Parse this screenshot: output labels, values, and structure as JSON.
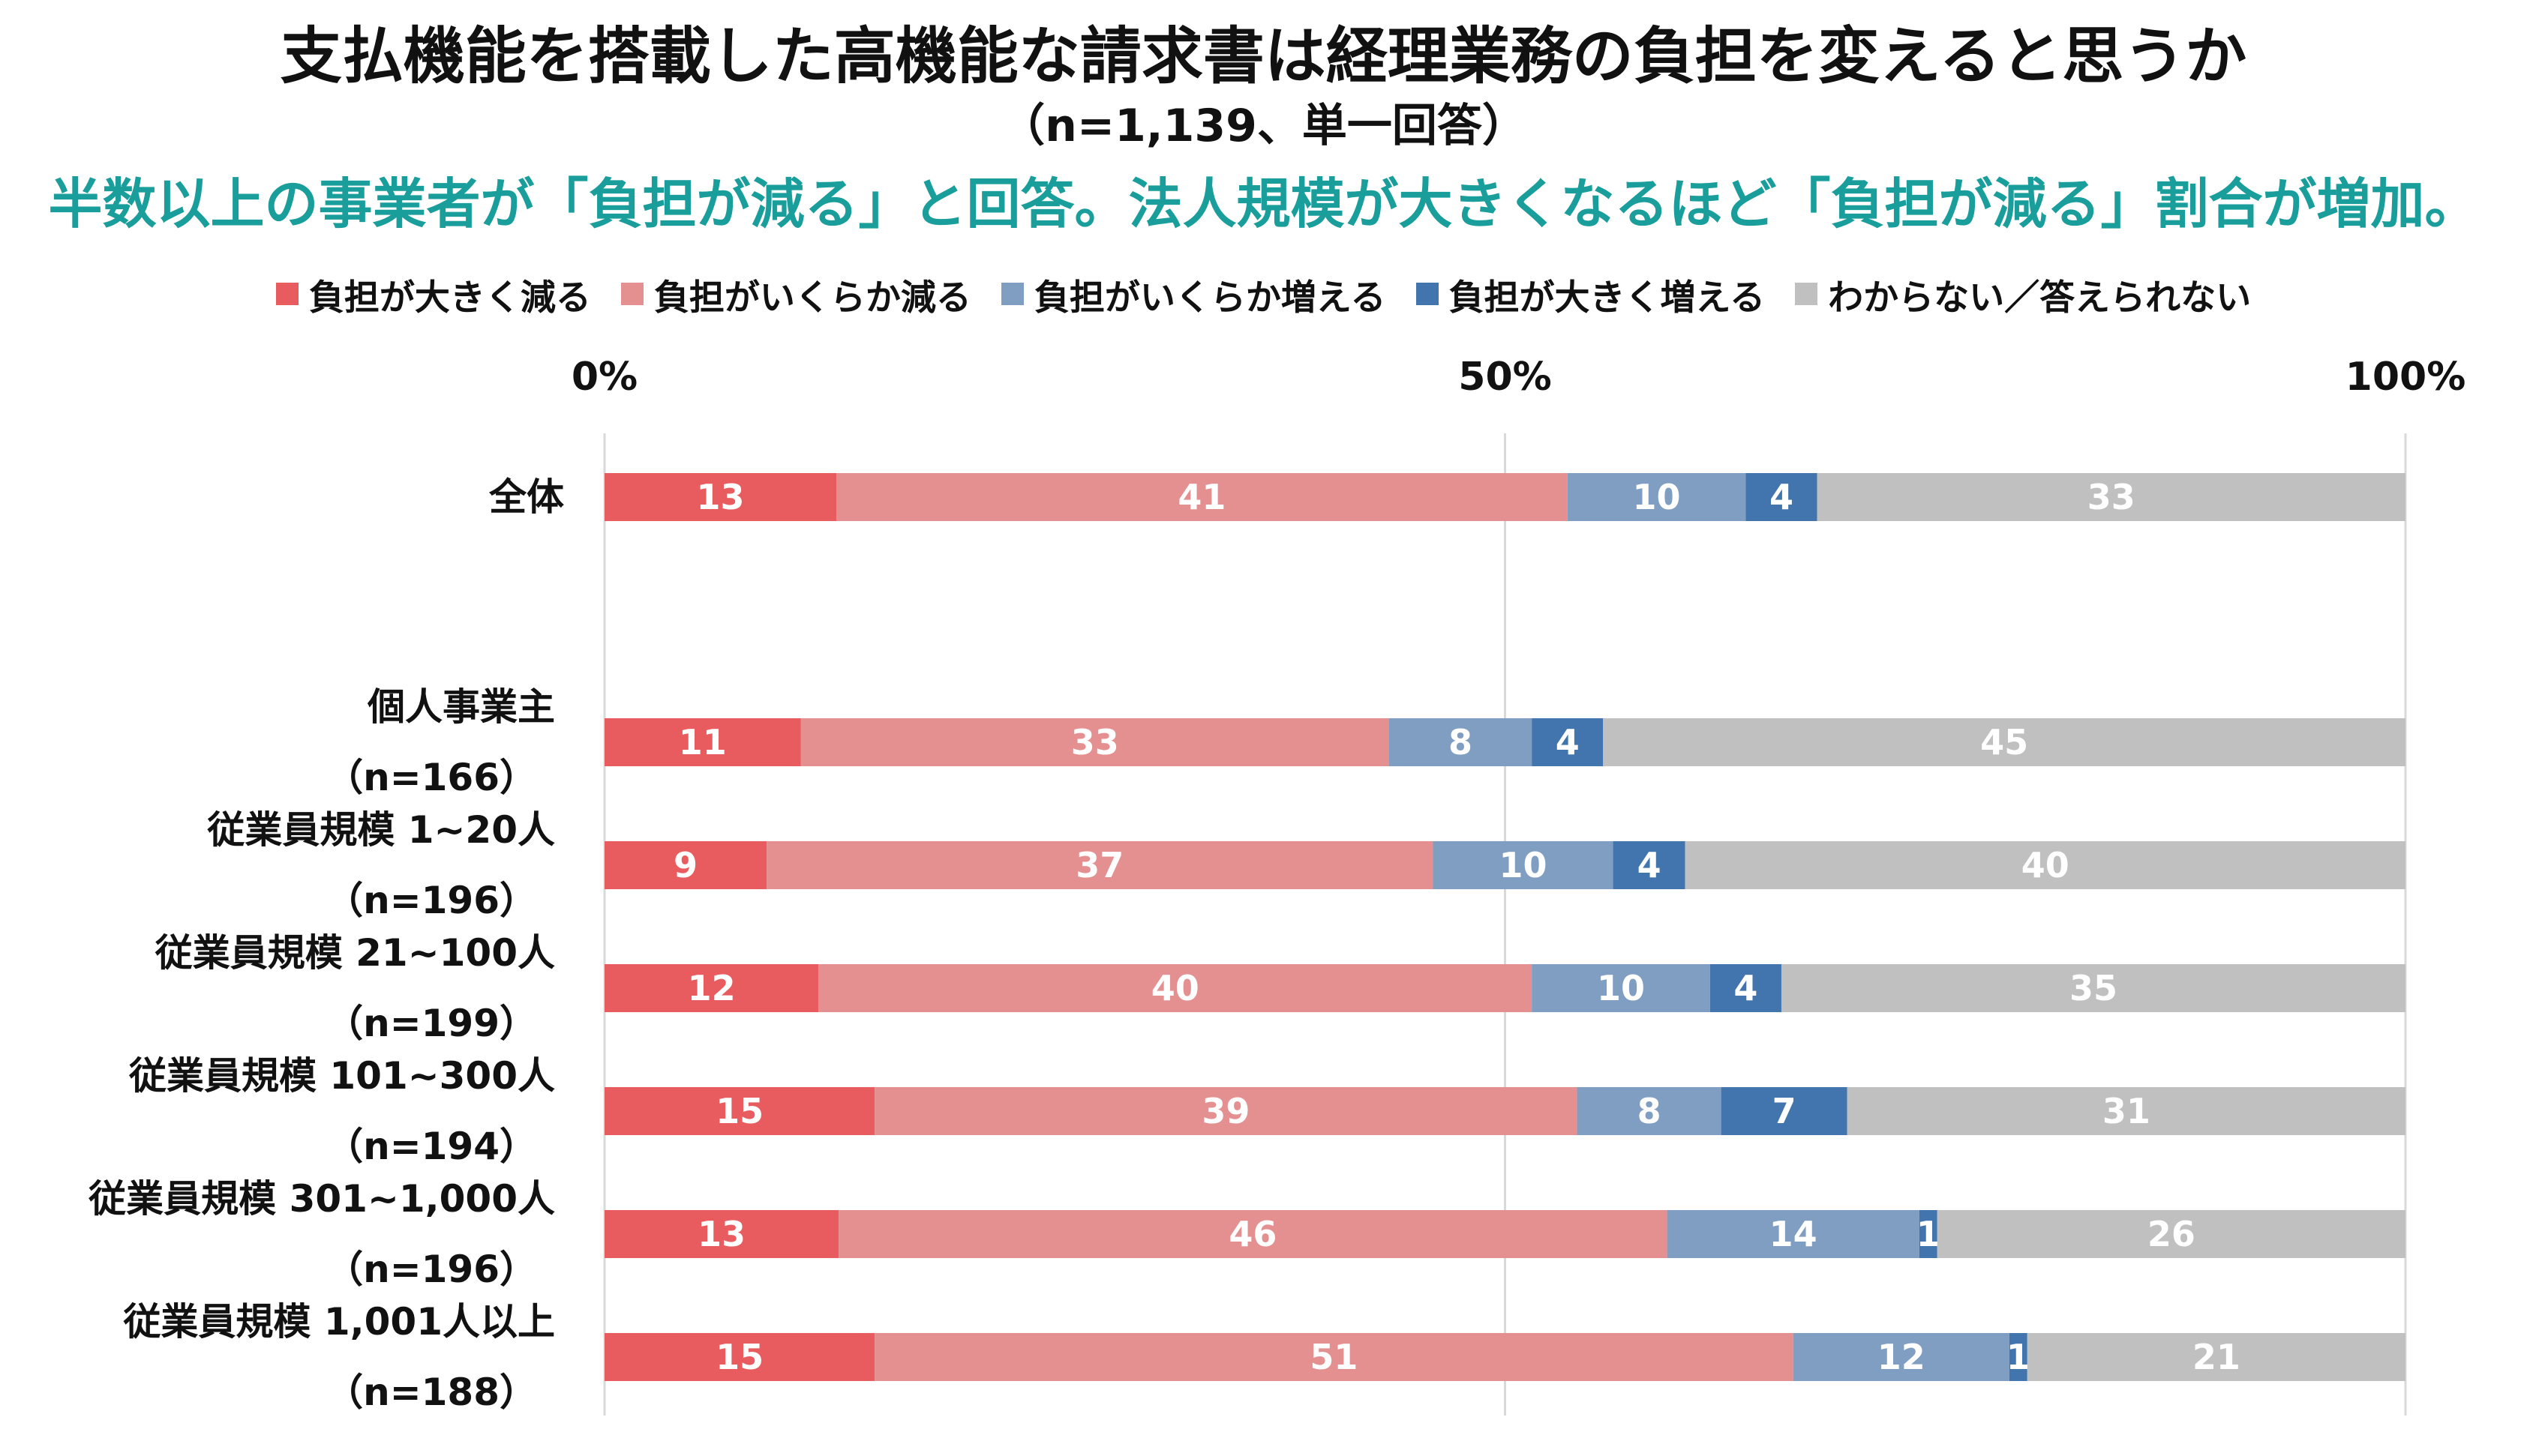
{
  "header": {
    "title": "支払機能を搭載した高機能な請求書は経理業務の負担を変えると思うか",
    "subtitle": "（n=1,139、単一回答）",
    "headline": "半数以上の事業者が「負担が減る」と回答。法人規模が大きくなるほど「負担が減る」割合が増加。",
    "headline_color": "#1a9e9c"
  },
  "chart_data": {
    "type": "bar",
    "orientation": "horizontal",
    "stacked": true,
    "unit": "%",
    "xlim": [
      0,
      100
    ],
    "x_ticks": [
      "0%",
      "50%",
      "100%"
    ],
    "grid": true,
    "legend_position": "top",
    "series": [
      {
        "name": "負担が大きく減る",
        "color": "#e85b5f",
        "values": [
          13,
          11,
          9,
          12,
          15,
          13,
          15
        ]
      },
      {
        "name": "負担がいくらか減る",
        "color": "#e49090",
        "values": [
          41,
          33,
          37,
          40,
          39,
          46,
          51
        ]
      },
      {
        "name": "負担がいくらか増える",
        "color": "#809ec2",
        "values": [
          10,
          8,
          10,
          10,
          8,
          14,
          12
        ]
      },
      {
        "name": "負担が大きく増える",
        "color": "#4275ad",
        "values": [
          4,
          4,
          4,
          4,
          7,
          1,
          1
        ]
      },
      {
        "name": "わからない／答えられない",
        "color": "#c0c0c0",
        "values": [
          33,
          45,
          40,
          35,
          31,
          26,
          21
        ]
      }
    ],
    "categories": [
      {
        "label": "全体",
        "n": ""
      },
      {
        "label": "個人事業主",
        "n": "（n=166）"
      },
      {
        "label": "従業員規模 1~20人",
        "n": "（n=196）"
      },
      {
        "label": "従業員規模 21~100人",
        "n": "（n=199）"
      },
      {
        "label": "従業員規模 101~300人",
        "n": "（n=194）"
      },
      {
        "label": "従業員規模 301~1,000人",
        "n": "（n=196）"
      },
      {
        "label": "従業員規模 1,001人以上",
        "n": "（n=188）"
      }
    ]
  }
}
